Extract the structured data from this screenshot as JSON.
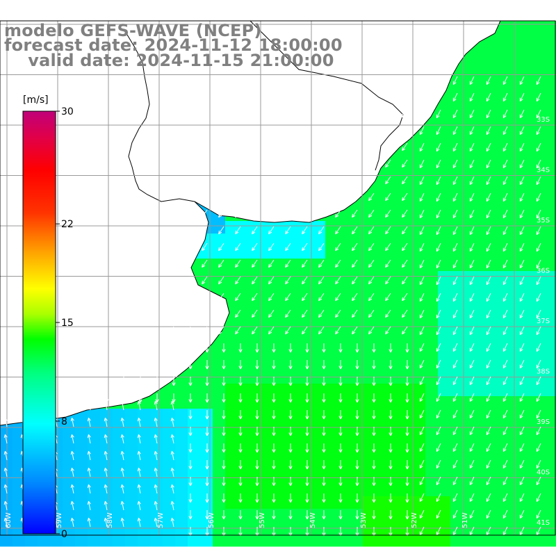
{
  "title": {
    "model": "modelo GEFS-WAVE (NCEP)",
    "forecast": "forecast date: 2024-11-12 18:00:00",
    "valid": "    valid date: 2024-11-15 21:00:00"
  },
  "colorbar": {
    "unit": "[m/s]",
    "ticks": [
      "30",
      "22",
      "15",
      "8",
      "0"
    ],
    "tick_values": [
      30,
      22,
      15,
      8,
      0
    ],
    "min": 0,
    "max": 30,
    "colors": [
      "#0000ff",
      "#00aaff",
      "#00ffff",
      "#00ff66",
      "#00ff00",
      "#aaff00",
      "#ffff00",
      "#ffaa00",
      "#ff5500",
      "#ff0000",
      "#e0004a",
      "#c0007a"
    ]
  },
  "map": {
    "lat_labels": [
      "33S",
      "34S",
      "35S",
      "36S",
      "37S",
      "38S",
      "39S",
      "40S",
      "41S"
    ],
    "lon_labels": [
      "60W",
      "59W",
      "58W",
      "57W",
      "56W",
      "55W",
      "54W",
      "53W",
      "52W",
      "51W"
    ],
    "land_color": "#ffffff",
    "grid_color": "#999999",
    "arrow_color": "#ffffff",
    "field_description": "wind speed (m/s) with direction arrows"
  }
}
